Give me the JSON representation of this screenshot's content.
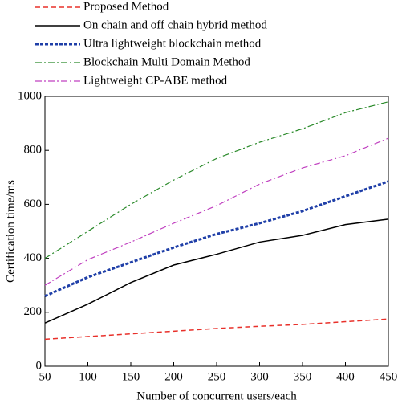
{
  "chart_data": {
    "type": "line",
    "x_label": "Number of concurrent users/each",
    "y_label": "Certification time/ms",
    "x": [
      50,
      100,
      150,
      200,
      250,
      300,
      350,
      400,
      450
    ],
    "series": [
      {
        "name": "Proposed Method",
        "color": "#e8302a",
        "dash": "6,4",
        "width": 1.5,
        "values": [
          100,
          110,
          120,
          130,
          140,
          148,
          155,
          165,
          175
        ]
      },
      {
        "name": "On chain and off chain hybrid method",
        "color": "#000000",
        "dash": "",
        "width": 1.5,
        "values": [
          160,
          230,
          310,
          375,
          415,
          460,
          485,
          525,
          545
        ]
      },
      {
        "name": "Ultra lightweight blockchain method",
        "color": "#1f3fa8",
        "dash": "4,2",
        "width": 3,
        "values": [
          260,
          330,
          385,
          440,
          490,
          530,
          575,
          630,
          685
        ]
      },
      {
        "name": "Blockchain Multi Domain Method",
        "color": "#2a8a2a",
        "dash": "8,3,2,3",
        "width": 1.2,
        "values": [
          400,
          500,
          600,
          690,
          770,
          830,
          880,
          940,
          980
        ]
      },
      {
        "name": "Lightweight CP-ABE method",
        "color": "#c040c0",
        "dash": "8,3,2,3",
        "width": 1.2,
        "values": [
          300,
          395,
          460,
          530,
          595,
          675,
          735,
          780,
          845
        ]
      }
    ],
    "xlim": [
      50,
      450
    ],
    "xticks": [
      50,
      100,
      150,
      200,
      250,
      300,
      350,
      400,
      450
    ],
    "ylim": [
      0,
      1000
    ],
    "yticks": [
      0,
      200,
      400,
      600,
      800,
      1000
    ]
  }
}
